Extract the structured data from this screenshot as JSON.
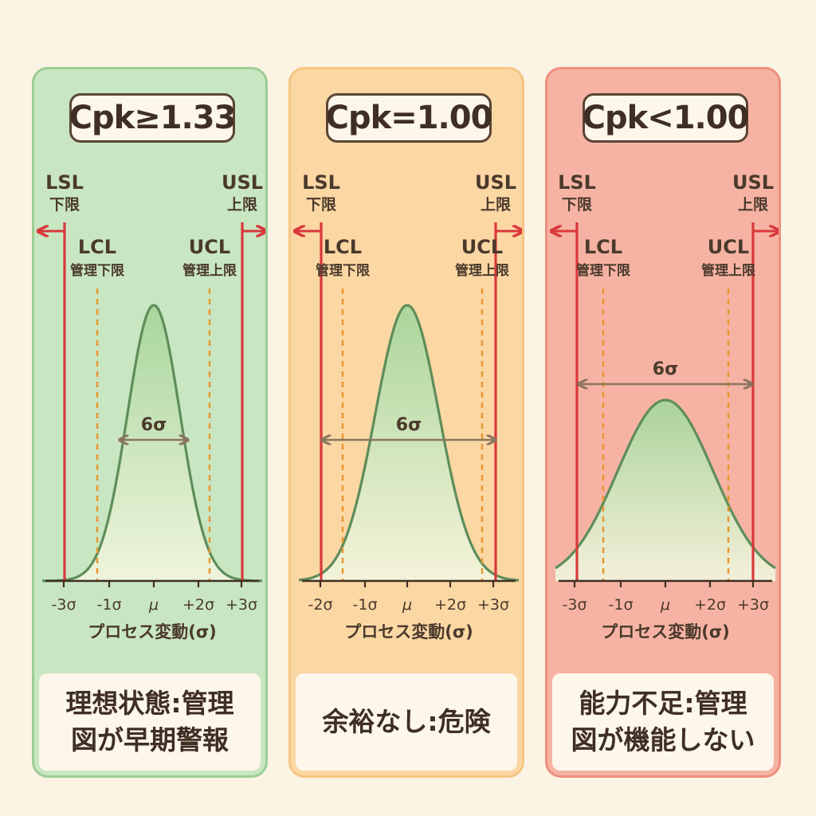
{
  "colors": {
    "spec_limit": "#d9383b",
    "control_limit": "#e8962d",
    "curve_stroke": "#5e8d5a",
    "curve_fill": "#a6d59a",
    "arrow": "#8a7560",
    "text": "#4a3a2c"
  },
  "panels": [
    {
      "title": "Cpk≥1.33",
      "background": "#c9e6c2",
      "border": "#9ccd94",
      "limits": {
        "lsl": "LSL",
        "lsl_jp": "下限",
        "usl": "USL",
        "usl_jp": "上限",
        "lcl": "LCL",
        "lcl_jp": "管理下限",
        "ucl": "UCL",
        "ucl_jp": "管理上限"
      },
      "spread_label": "6σ",
      "x_ticks": [
        "-3σ",
        "-1σ",
        "μ",
        "+2σ",
        "+3σ"
      ],
      "x_axis_label": "プロセス変動(σ)",
      "caption": [
        "理想状態:管理",
        "図が早期警報"
      ]
    },
    {
      "title": "Cpk=1.00",
      "background": "#fbd7a4",
      "border": "#f6c582",
      "limits": {
        "lsl": "LSL",
        "lsl_jp": "下限",
        "usl": "USL",
        "usl_jp": "上限",
        "lcl": "LCL",
        "lcl_jp": "管理下限",
        "ucl": "UCL",
        "ucl_jp": "管理上限"
      },
      "spread_label": "6σ",
      "x_ticks": [
        "-2σ",
        "-1σ",
        "μ",
        "+2σ",
        "+3σ"
      ],
      "x_axis_label": "プロセス変動(σ)",
      "caption": [
        "余裕なし:危険"
      ]
    },
    {
      "title": "Cpk<1.00",
      "background": "#f6b3a3",
      "border": "#ee8f80",
      "limits": {
        "lsl": "LSL",
        "lsl_jp": "下限",
        "usl": "USL",
        "usl_jp": "上限",
        "lcl": "LCL",
        "lcl_jp": "管理下限",
        "ucl": "UCL",
        "ucl_jp": "管理上限"
      },
      "spread_label": "6σ",
      "x_ticks": [
        "-3σ",
        "-1σ",
        "μ",
        "+2σ",
        "+3σ"
      ],
      "x_axis_label": "プロセス変動(σ)",
      "caption": [
        "能力不足:管理",
        "図が機能しない"
      ]
    }
  ]
}
